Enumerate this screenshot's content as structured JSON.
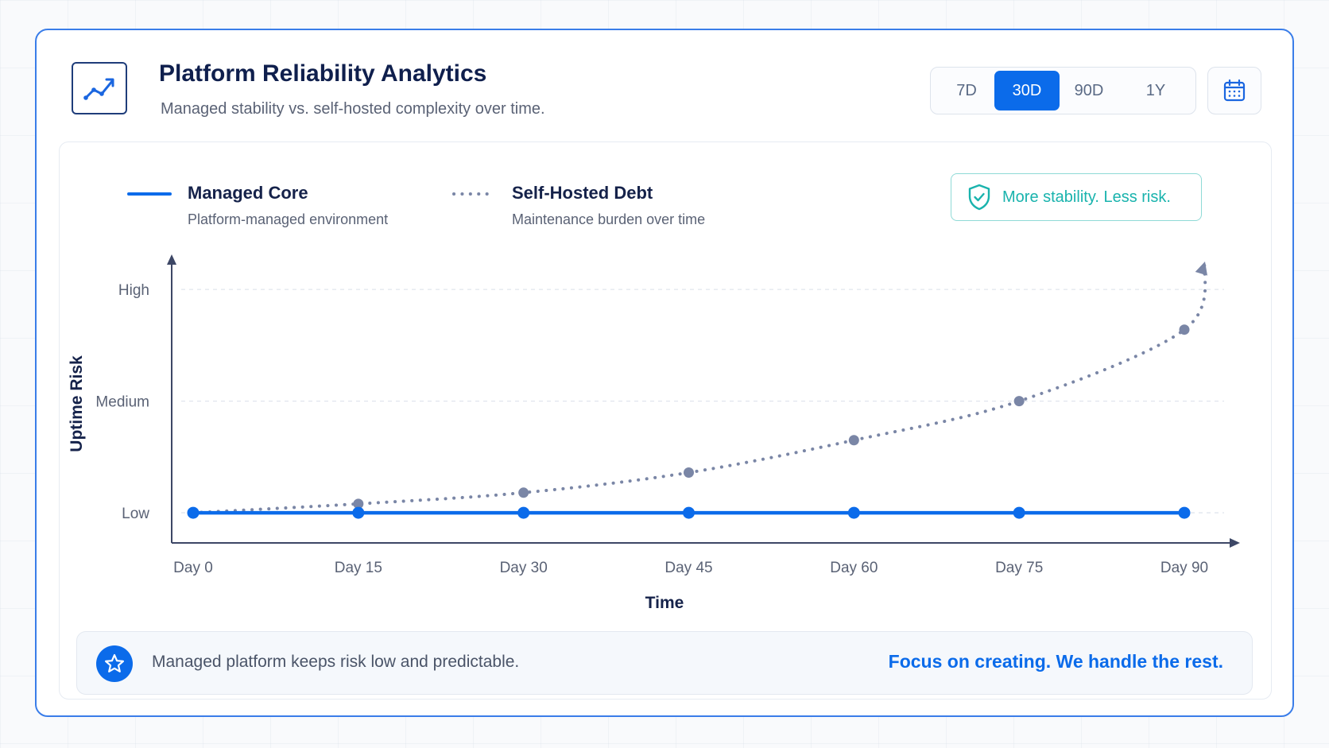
{
  "header": {
    "icon": "trend-line-icon",
    "title": "Platform Reliability Analytics",
    "subtitle": "Managed stability vs. self-hosted complexity over time."
  },
  "range_selector": {
    "options": [
      "7D",
      "30D",
      "90D",
      "1Y"
    ],
    "selected": "30D",
    "calendar_icon": "calendar-icon"
  },
  "badge": {
    "icon": "shield-check-icon",
    "text": "More stability. Less risk."
  },
  "legend": [
    {
      "name": "Managed Core",
      "description": "Platform-managed environment",
      "style": "solid",
      "color": "#0b6bea"
    },
    {
      "name": "Self-Hosted Debt",
      "description": "Maintenance burden over time",
      "style": "dotted",
      "color": "#7a86a6"
    }
  ],
  "chart_data": {
    "type": "line",
    "xlabel": "Time",
    "ylabel": "Uptime Risk",
    "x": [
      0,
      15,
      30,
      45,
      60,
      75,
      90
    ],
    "x_tick_labels": [
      "Day 0",
      "Day 15",
      "Day 30",
      "Day 45",
      "Day 60",
      "Day 75",
      "Day 90"
    ],
    "y_tick_labels": [
      "Low",
      "Medium",
      "High"
    ],
    "y_tick_values": [
      1,
      2,
      3
    ],
    "ylim": [
      0.73,
      3.3
    ],
    "grid": "horizontal dashed",
    "legend_position": "top-left",
    "series": [
      {
        "name": "Managed Core",
        "style": "solid",
        "color": "#0b6bea",
        "values": [
          1,
          1,
          1,
          1,
          1,
          1,
          1
        ]
      },
      {
        "name": "Self-Hosted Debt",
        "style": "dotted",
        "color": "#7a86a6",
        "values": [
          1,
          1.08,
          1.18,
          1.36,
          1.65,
          2.0,
          2.64
        ],
        "end_value": 3.25
      }
    ]
  },
  "footer": {
    "icon": "star-icon",
    "text": "Managed platform keeps risk low and predictable.",
    "cta": "Focus on creating. We handle the rest."
  }
}
